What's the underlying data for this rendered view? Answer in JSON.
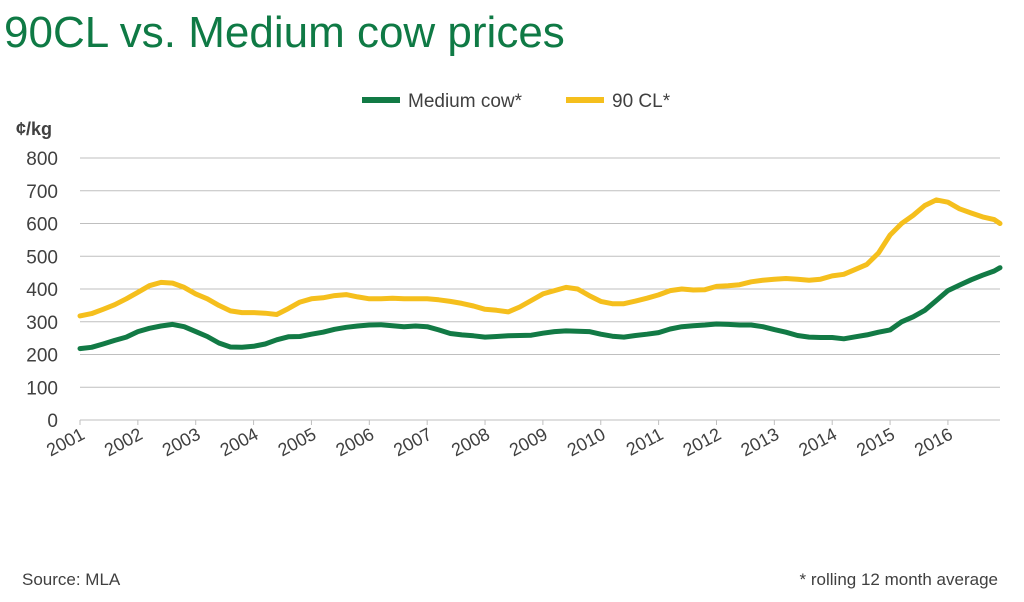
{
  "title": "90CL vs. Medium cow prices",
  "source": "Source: MLA",
  "footnote": "* rolling 12 month average",
  "colors": {
    "title": "#0f7a45",
    "medium_cow": "#127a45",
    "cl90": "#f5bf1d",
    "grid": "#bfbfbf",
    "text": "#404040"
  },
  "chart_data": {
    "type": "line",
    "ylabel": "¢/kg",
    "ylim": [
      0,
      800
    ],
    "yticks": [
      0,
      100,
      200,
      300,
      400,
      500,
      600,
      700,
      800
    ],
    "xlim": [
      2001,
      2016.9
    ],
    "xticks": [
      "2001",
      "2002",
      "2003",
      "2004",
      "2005",
      "2006",
      "2007",
      "2008",
      "2009",
      "2010",
      "2011",
      "2012",
      "2013",
      "2014",
      "2015",
      "2016"
    ],
    "grid": true,
    "legend_position": "top",
    "series": [
      {
        "name": "Medium cow*",
        "color": "#127a45",
        "x": [
          2001.0,
          2001.2,
          2001.4,
          2001.6,
          2001.8,
          2002.0,
          2002.2,
          2002.4,
          2002.6,
          2002.8,
          2003.0,
          2003.2,
          2003.4,
          2003.6,
          2003.8,
          2004.0,
          2004.2,
          2004.4,
          2004.6,
          2004.8,
          2005.0,
          2005.2,
          2005.4,
          2005.6,
          2005.8,
          2006.0,
          2006.2,
          2006.4,
          2006.6,
          2006.8,
          2007.0,
          2007.2,
          2007.4,
          2007.6,
          2007.8,
          2008.0,
          2008.2,
          2008.4,
          2008.6,
          2008.8,
          2009.0,
          2009.2,
          2009.4,
          2009.6,
          2009.8,
          2010.0,
          2010.2,
          2010.4,
          2010.6,
          2010.8,
          2011.0,
          2011.2,
          2011.4,
          2011.6,
          2011.8,
          2012.0,
          2012.2,
          2012.4,
          2012.6,
          2012.8,
          2013.0,
          2013.2,
          2013.4,
          2013.6,
          2013.8,
          2014.0,
          2014.2,
          2014.4,
          2014.6,
          2014.8,
          2015.0,
          2015.2,
          2015.4,
          2015.6,
          2015.8,
          2016.0,
          2016.2,
          2016.4,
          2016.6,
          2016.8,
          2016.9
        ],
        "values": [
          218,
          222,
          232,
          243,
          253,
          270,
          280,
          287,
          292,
          285,
          270,
          255,
          235,
          223,
          222,
          225,
          232,
          245,
          254,
          255,
          262,
          268,
          277,
          283,
          287,
          290,
          291,
          288,
          285,
          287,
          285,
          275,
          264,
          260,
          257,
          253,
          255,
          257,
          258,
          259,
          265,
          270,
          272,
          271,
          270,
          262,
          256,
          253,
          258,
          262,
          267,
          278,
          285,
          288,
          290,
          293,
          292,
          290,
          290,
          285,
          276,
          268,
          258,
          253,
          252,
          252,
          248,
          254,
          260,
          268,
          275,
          300,
          315,
          335,
          365,
          395,
          412,
          428,
          442,
          455,
          465
        ]
      },
      {
        "name": "90 CL*",
        "color": "#f5bf1d",
        "x": [
          2001.0,
          2001.2,
          2001.4,
          2001.6,
          2001.8,
          2002.0,
          2002.2,
          2002.4,
          2002.6,
          2002.8,
          2003.0,
          2003.2,
          2003.4,
          2003.6,
          2003.8,
          2004.0,
          2004.2,
          2004.4,
          2004.6,
          2004.8,
          2005.0,
          2005.2,
          2005.4,
          2005.6,
          2005.8,
          2006.0,
          2006.2,
          2006.4,
          2006.6,
          2006.8,
          2007.0,
          2007.2,
          2007.4,
          2007.6,
          2007.8,
          2008.0,
          2008.2,
          2008.4,
          2008.6,
          2008.8,
          2009.0,
          2009.2,
          2009.4,
          2009.6,
          2009.8,
          2010.0,
          2010.2,
          2010.4,
          2010.6,
          2010.8,
          2011.0,
          2011.2,
          2011.4,
          2011.6,
          2011.8,
          2012.0,
          2012.2,
          2012.4,
          2012.6,
          2012.8,
          2013.0,
          2013.2,
          2013.4,
          2013.6,
          2013.8,
          2014.0,
          2014.2,
          2014.4,
          2014.6,
          2014.8,
          2015.0,
          2015.2,
          2015.4,
          2015.6,
          2015.8,
          2016.0,
          2016.2,
          2016.4,
          2016.6,
          2016.8,
          2016.9
        ],
        "values": [
          318,
          325,
          338,
          352,
          370,
          390,
          410,
          420,
          418,
          405,
          385,
          370,
          350,
          333,
          328,
          328,
          326,
          322,
          340,
          360,
          370,
          373,
          380,
          383,
          376,
          370,
          370,
          372,
          370,
          370,
          370,
          367,
          362,
          356,
          348,
          338,
          335,
          330,
          345,
          365,
          385,
          395,
          405,
          400,
          380,
          362,
          355,
          355,
          363,
          372,
          382,
          395,
          400,
          397,
          398,
          408,
          410,
          413,
          422,
          427,
          430,
          432,
          430,
          427,
          430,
          440,
          445,
          460,
          475,
          510,
          565,
          600,
          625,
          655,
          672,
          665,
          645,
          632,
          620,
          612,
          600
        ]
      }
    ]
  }
}
